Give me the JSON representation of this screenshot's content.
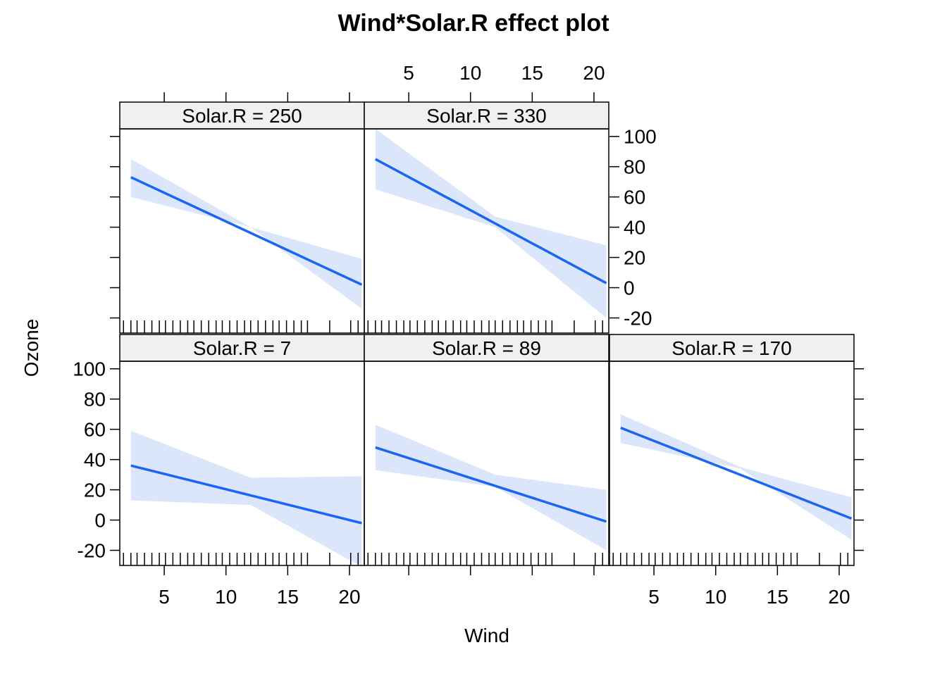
{
  "chart_data": {
    "type": "line",
    "title": "Wind*Solar.R effect plot",
    "xlabel": "Wind",
    "ylabel": "Ozone",
    "xlim": [
      1.4,
      21.2
    ],
    "ylim": [
      -30,
      105
    ],
    "x_ticks": [
      5,
      10,
      15,
      20
    ],
    "y_ticks": [
      -20,
      0,
      20,
      40,
      60,
      80,
      100
    ],
    "line_color": "#1a66f0",
    "band_color": "#dce6fb",
    "strip_color": "#f0f0f0",
    "rug_x": [
      1.7,
      2.3,
      2.8,
      3.4,
      4.0,
      4.6,
      5.1,
      5.7,
      6.3,
      6.9,
      7.4,
      8.0,
      8.6,
      9.2,
      9.7,
      10.3,
      10.9,
      11.5,
      12.0,
      12.6,
      13.2,
      13.8,
      14.3,
      14.9,
      15.5,
      16.1,
      16.6,
      18.4,
      20.1,
      20.7
    ],
    "panels": [
      {
        "strip": "Solar.R = 250",
        "fit": [
          [
            2.3,
            73
          ],
          [
            21.0,
            2
          ]
        ],
        "band_upper": [
          [
            2.3,
            85
          ],
          [
            12.0,
            40
          ],
          [
            21.0,
            19
          ]
        ],
        "band_lower": [
          [
            2.3,
            60
          ],
          [
            12.0,
            40
          ],
          [
            21.0,
            -14
          ]
        ]
      },
      {
        "strip": "Solar.R = 330",
        "fit": [
          [
            2.3,
            85
          ],
          [
            21.0,
            3
          ]
        ],
        "band_upper": [
          [
            2.3,
            105
          ],
          [
            12.0,
            47
          ],
          [
            21.0,
            28
          ]
        ],
        "band_lower": [
          [
            2.3,
            65
          ],
          [
            12.0,
            40
          ],
          [
            21.0,
            -20
          ]
        ]
      },
      {
        "strip": "Solar.R = 7",
        "fit": [
          [
            2.3,
            36
          ],
          [
            21.0,
            -2
          ]
        ],
        "band_upper": [
          [
            2.3,
            59
          ],
          [
            12.0,
            28
          ],
          [
            21.0,
            29
          ]
        ],
        "band_lower": [
          [
            2.3,
            13
          ],
          [
            12.0,
            10
          ],
          [
            21.0,
            -31
          ]
        ]
      },
      {
        "strip": "Solar.R = 89",
        "fit": [
          [
            2.3,
            48
          ],
          [
            21.0,
            -1
          ]
        ],
        "band_upper": [
          [
            2.3,
            63
          ],
          [
            12.0,
            30
          ],
          [
            21.0,
            20
          ]
        ],
        "band_lower": [
          [
            2.3,
            33
          ],
          [
            12.0,
            22
          ],
          [
            21.0,
            -20
          ]
        ]
      },
      {
        "strip": "Solar.R = 170",
        "fit": [
          [
            2.3,
            61
          ],
          [
            21.0,
            1
          ]
        ],
        "band_upper": [
          [
            2.3,
            70
          ],
          [
            12.0,
            35
          ],
          [
            21.0,
            15
          ]
        ],
        "band_lower": [
          [
            2.3,
            51
          ],
          [
            12.0,
            34
          ],
          [
            21.0,
            -13
          ]
        ]
      }
    ]
  }
}
